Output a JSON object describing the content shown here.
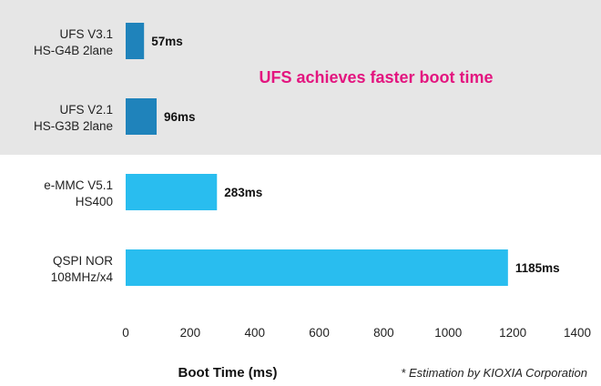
{
  "chart_data": {
    "type": "bar",
    "orientation": "horizontal",
    "categories": [
      [
        "UFS V3.1",
        "HS-G4B 2lane"
      ],
      [
        "UFS V2.1",
        "HS-G3B 2lane"
      ],
      [
        "e-MMC V5.1",
        "HS400"
      ],
      [
        "QSPI NOR",
        "108MHz/x4"
      ]
    ],
    "values": [
      57,
      96,
      283,
      1185
    ],
    "data_labels": [
      "57ms",
      "96ms",
      "283ms",
      "1185ms"
    ],
    "bar_colors": [
      "#1f83bb",
      "#1f83bb",
      "#29bdef",
      "#29bdef"
    ],
    "xlabel": "Boot Time (ms)",
    "xlim": [
      0,
      1400
    ],
    "xticks": [
      0,
      200,
      400,
      600,
      800,
      1000,
      1200,
      1400
    ],
    "grid": false,
    "highlight": {
      "categories": [
        0,
        1
      ],
      "color": "#e6e6e6"
    },
    "annotation": {
      "text": "UFS achieves faster boot time",
      "color": "#e3157f"
    },
    "footnote": "* Estimation by KIOXIA Corporation"
  }
}
